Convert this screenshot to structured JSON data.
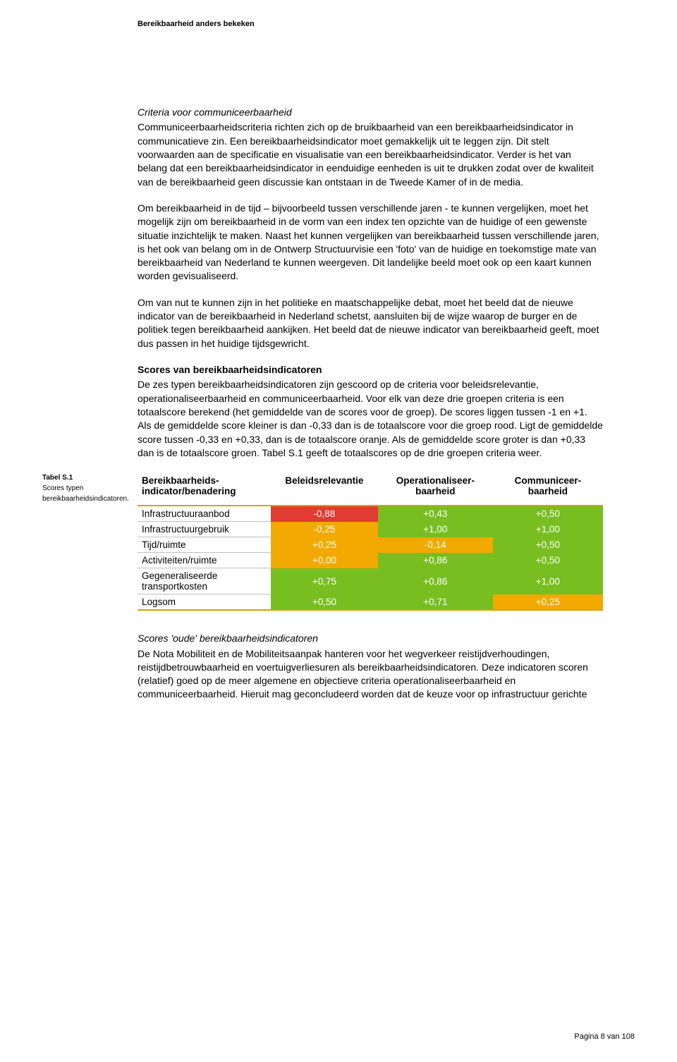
{
  "header": {
    "title": "Bereikbaarheid anders bekeken"
  },
  "body": {
    "h1": "Criteria voor communiceerbaarheid",
    "p1": "Communiceerbaarheidscriteria richten zich op de bruikbaarheid van een bereikbaarheidsindicator in communicatieve zin. Een bereikbaarheidsindicator moet gemakkelijk uit te leggen zijn. Dit stelt voorwaarden aan de specificatie en visualisatie van een bereikbaarheidsindicator. Verder is het van belang dat een bereikbaarheidsindicator in eenduidige eenheden is uit te drukken zodat over de kwaliteit van de bereikbaarheid geen discussie kan ontstaan in de Tweede Kamer of in de media.",
    "p2": "Om bereikbaarheid in de tijd – bijvoorbeeld tussen verschillende jaren - te kunnen vergelijken, moet het mogelijk zijn om bereikbaarheid in de vorm van een index ten opzichte van de huidige of een gewenste situatie inzichtelijk te maken. Naast het kunnen vergelijken van bereikbaarheid tussen verschillende jaren, is het ook van belang om in de Ontwerp Structuurvisie een 'foto' van de huidige en toekomstige mate van bereikbaarheid van Nederland te kunnen weergeven. Dit landelijke beeld moet ook op een kaart kunnen worden gevisualiseerd.",
    "p3": "Om van nut te kunnen zijn in het politieke en maatschappelijke debat, moet het beeld dat de nieuwe indicator van de bereikbaarheid in Nederland schetst, aansluiten bij de wijze waarop de burger en de politiek tegen bereikbaarheid aankijken. Het beeld dat de nieuwe indicator van bereikbaarheid geeft, moet dus passen in het huidige tijdsgewricht.",
    "h2": "Scores van bereikbaarheidsindicatoren",
    "p4": "De zes typen bereikbaarheidsindicatoren zijn gescoord op de criteria voor beleidsrelevantie, operationaliseerbaarheid en communiceerbaarheid. Voor elk van deze drie groepen criteria is een totaalscore berekend (het gemiddelde van de scores voor de groep). De scores liggen tussen -1 en +1. Als de gemiddelde score kleiner is dan -0,33 dan is de totaalscore voor die groep rood. Ligt de gemiddelde score tussen -0,33 en +0,33, dan is de totaalscore oranje. Als de gemiddelde score groter is dan +0,33 dan is de totaalscore groen. Tabel S.1 geeft de totaalscores op de drie groepen criteria weer.",
    "h3": "Scores 'oude' bereikbaarheidsindicatoren",
    "p5": "De Nota Mobiliteit en de Mobiliteitsaanpak hanteren voor het wegverkeer reistijdverhoudingen, reistijdbetrouwbaarheid en voertuigverliesuren als bereikbaarheidsindicatoren. Deze indicatoren scoren (relatief) goed op de meer algemene en objectieve criteria operationaliseerbaarheid en communiceerbaarheid. Hieruit mag geconcludeerd worden dat de keuze voor op infrastructuur gerichte"
  },
  "sidenote": {
    "title": "Tabel S.1",
    "line1": "Scores typen",
    "line2": "bereikbaarheidsindicatoren."
  },
  "table": {
    "columns": [
      "Bereikbaarheids-indicator/benadering",
      "Beleidsrelevantie",
      "Operationaliseer-baarheid",
      "Communiceer-baarheid"
    ],
    "colors": {
      "red": "#e03c31",
      "orange": "#f2a900",
      "green": "#78be20",
      "header_rule": "#d9a300",
      "row_rule": "#bfbfbf",
      "text_on_fill": "#ffffff"
    },
    "rows": [
      {
        "label": "Infrastructuuraanbod",
        "cells": [
          {
            "v": "-0,88",
            "c": "red"
          },
          {
            "v": "+0,43",
            "c": "green"
          },
          {
            "v": "+0,50",
            "c": "green"
          }
        ]
      },
      {
        "label": "Infrastructuurgebruik",
        "cells": [
          {
            "v": "-0,25",
            "c": "orange"
          },
          {
            "v": "+1,00",
            "c": "green"
          },
          {
            "v": "+1,00",
            "c": "green"
          }
        ]
      },
      {
        "label": "Tijd/ruimte",
        "cells": [
          {
            "v": "+0,25",
            "c": "orange"
          },
          {
            "v": "-0,14",
            "c": "orange"
          },
          {
            "v": "+0,50",
            "c": "green"
          }
        ]
      },
      {
        "label": "Activiteiten/ruimte",
        "cells": [
          {
            "v": "+0,00",
            "c": "orange"
          },
          {
            "v": "+0,86",
            "c": "green"
          },
          {
            "v": "+0,50",
            "c": "green"
          }
        ]
      },
      {
        "label": "Gegeneraliseerde transportkosten",
        "cells": [
          {
            "v": "+0,75",
            "c": "green"
          },
          {
            "v": "+0,86",
            "c": "green"
          },
          {
            "v": "+1,00",
            "c": "green"
          }
        ]
      },
      {
        "label": "Logsom",
        "cells": [
          {
            "v": "+0,50",
            "c": "green"
          },
          {
            "v": "+0,71",
            "c": "green"
          },
          {
            "v": "+0,25",
            "c": "orange"
          }
        ]
      }
    ]
  },
  "footer": {
    "page": "Pagina 8 van 108"
  }
}
